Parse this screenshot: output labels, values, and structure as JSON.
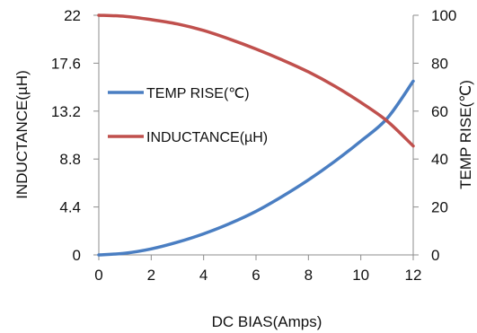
{
  "chart_data": {
    "type": "line",
    "xlabel": "DC  BIAS(Amps)",
    "ylabel_left": "INDUCTANCE(µH)",
    "ylabel_right": "TEMP RISE(℃)",
    "xlim": [
      0,
      12
    ],
    "ylim_left": [
      0,
      22
    ],
    "ylim_right": [
      0,
      100
    ],
    "x_ticks": [
      "0",
      "2",
      "4",
      "6",
      "8",
      "10",
      "12"
    ],
    "y_left_ticks": [
      "0",
      "4.4",
      "8.8",
      "13.2",
      "17.6",
      "22"
    ],
    "y_right_ticks": [
      "0",
      "20",
      "40",
      "60",
      "80",
      "100"
    ],
    "grid": false,
    "legend_position": "left",
    "series": [
      {
        "name": "TEMP RISE(℃)",
        "axis": "right",
        "color": "#4a7ec2",
        "x": [
          0,
          1,
          2,
          3,
          4,
          5,
          6,
          7,
          8,
          9,
          10,
          11,
          12
        ],
        "y": [
          0,
          0.7,
          2.5,
          5.3,
          8.8,
          13.1,
          18.2,
          24.4,
          31.3,
          39,
          47.5,
          56.9,
          72.5
        ]
      },
      {
        "name": "INDUCTANCE(µH)",
        "axis": "left",
        "color": "#c0504d",
        "x": [
          0,
          1,
          2,
          3,
          4,
          5,
          6,
          7,
          8,
          9,
          10,
          11,
          12
        ],
        "y": [
          22,
          21.9,
          21.6,
          21.2,
          20.6,
          19.8,
          18.9,
          17.9,
          16.8,
          15.5,
          14.0,
          12.3,
          10.0
        ]
      }
    ]
  }
}
